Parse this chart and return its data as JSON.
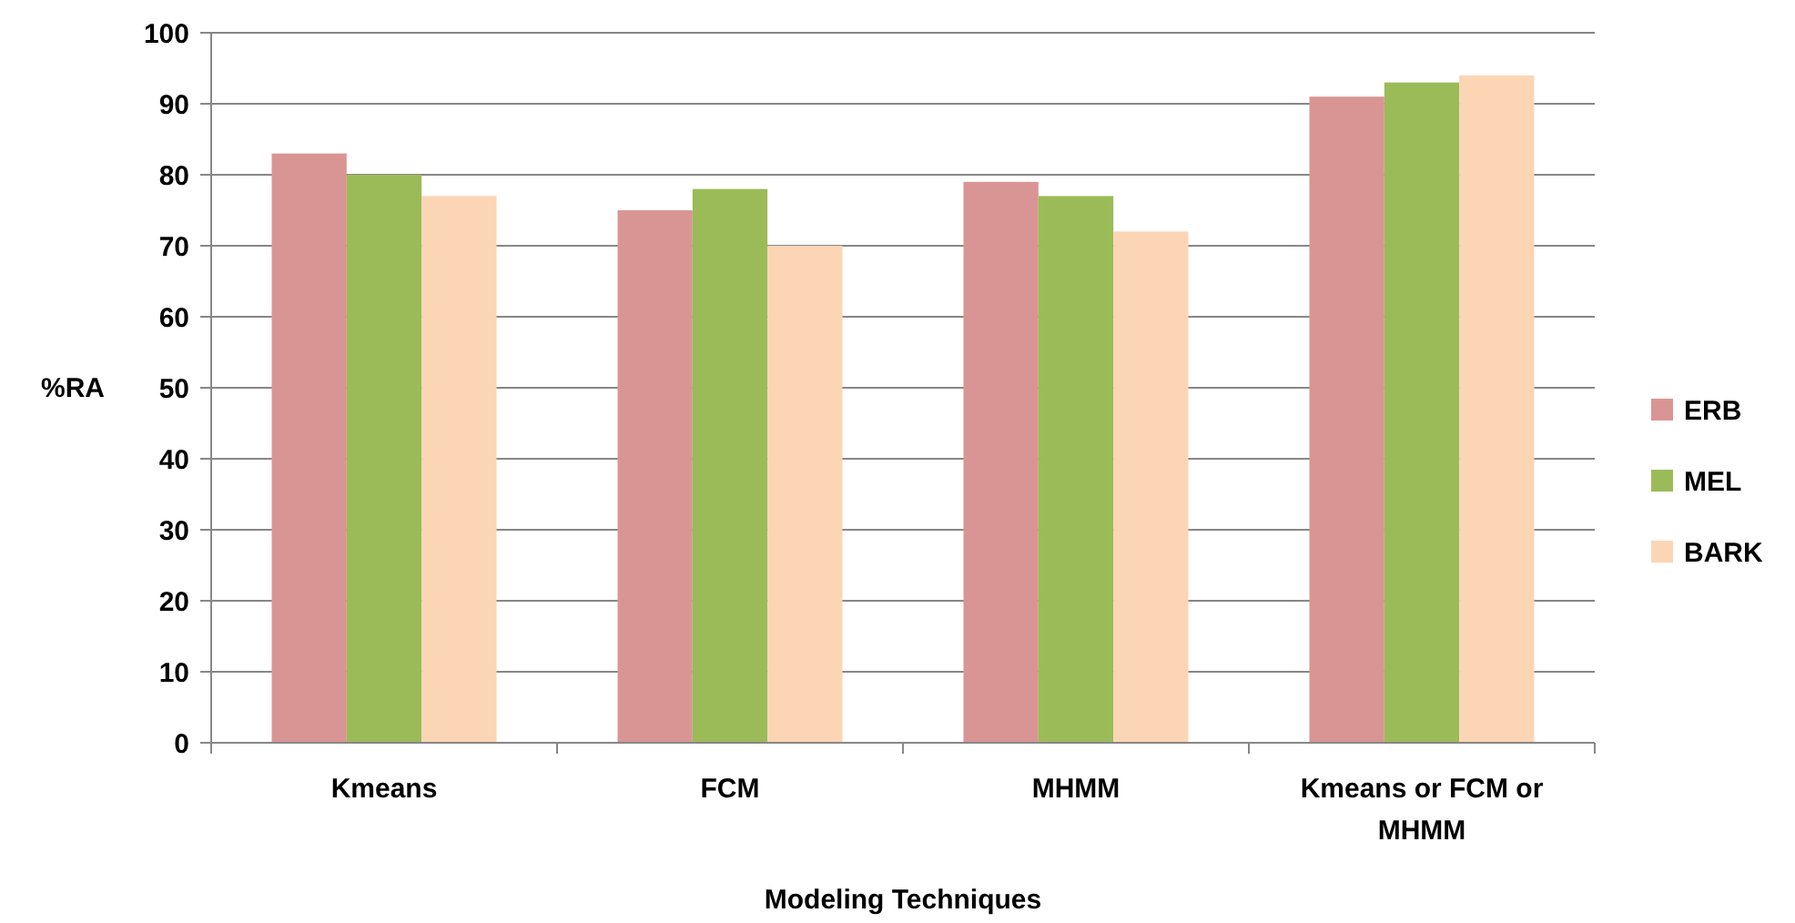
{
  "chart_data": {
    "type": "bar",
    "xlabel": "Modeling Techniques",
    "ylabel": "%RA",
    "categories": [
      "Kmeans",
      "FCM",
      "MHMM",
      "Kmeans or FCM or MHMM"
    ],
    "series": [
      {
        "name": "ERB",
        "color": "#d99594",
        "values": [
          83,
          75,
          79,
          91
        ]
      },
      {
        "name": "MEL",
        "color": "#9bbb59",
        "values": [
          80,
          78,
          77,
          93
        ]
      },
      {
        "name": "BARK",
        "color": "#fcd5b5",
        "values": [
          77,
          70,
          72,
          94
        ]
      }
    ],
    "ylim": [
      0,
      100
    ],
    "yticks": [
      0,
      10,
      20,
      30,
      40,
      50,
      60,
      70,
      80,
      90,
      100
    ],
    "grid": "y",
    "legend": "right"
  }
}
